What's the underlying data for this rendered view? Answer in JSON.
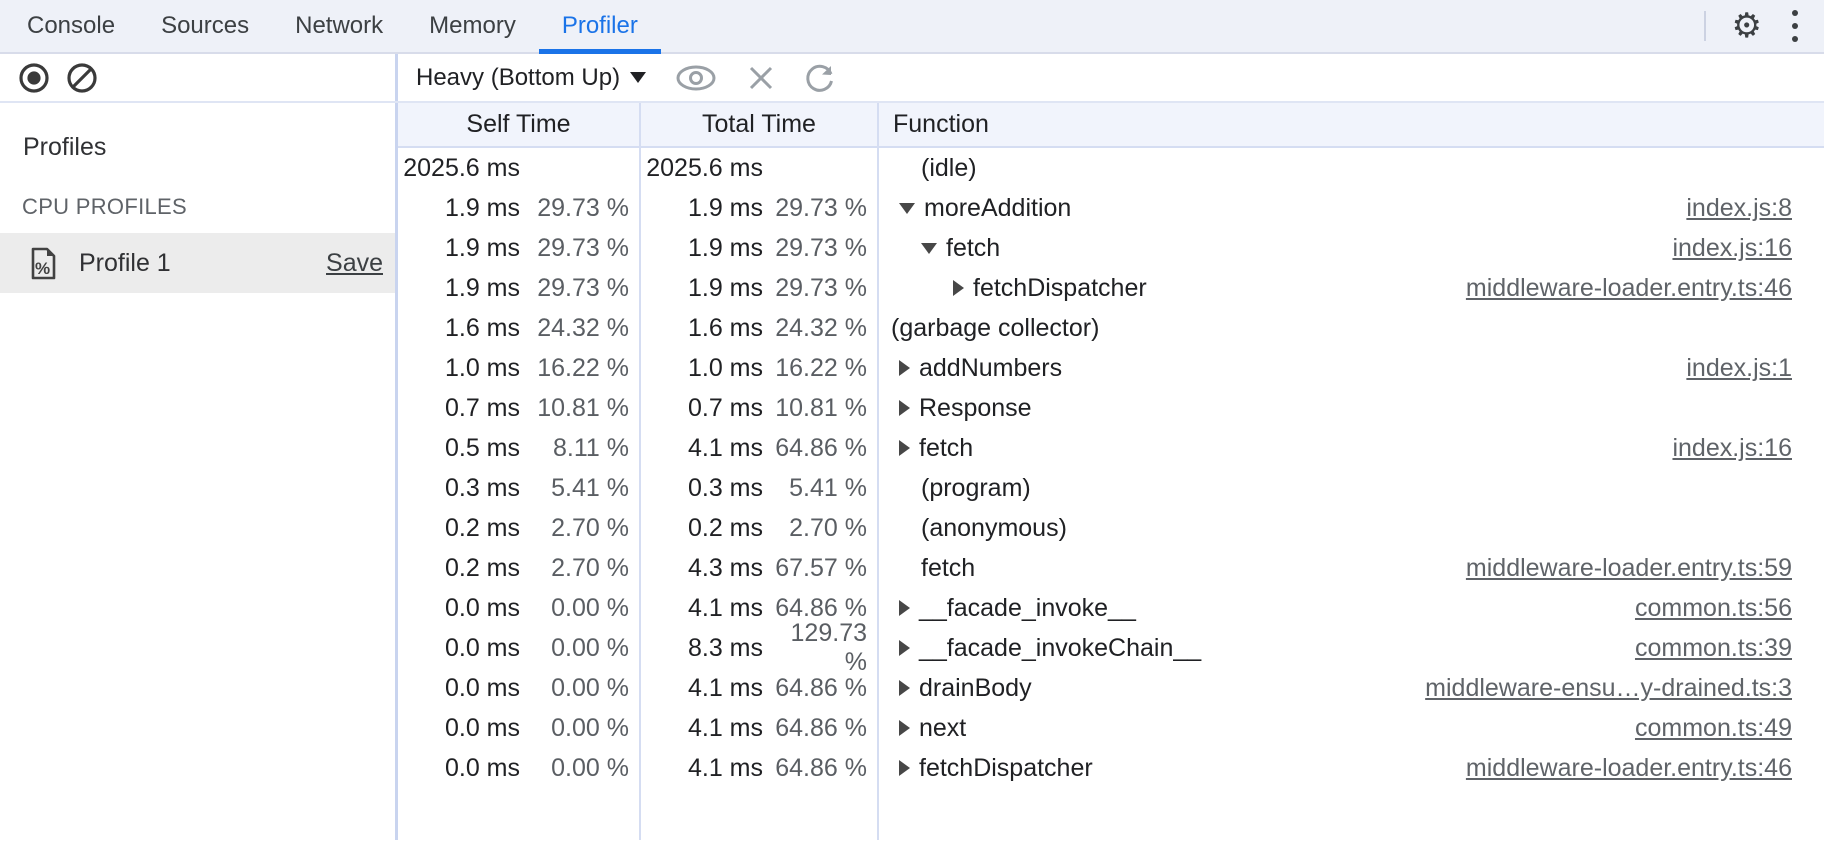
{
  "tabs": {
    "items": [
      {
        "label": "Console",
        "active": false
      },
      {
        "label": "Sources",
        "active": false
      },
      {
        "label": "Network",
        "active": false
      },
      {
        "label": "Memory",
        "active": false
      },
      {
        "label": "Profiler",
        "active": true
      }
    ]
  },
  "colors": {
    "accent": "#1a73e8",
    "grid_line": "#c9d4ef",
    "header_bg": "#f1f4fc",
    "secondary_text": "#5f6368"
  },
  "toolbar": {
    "view_mode": "Heavy (Bottom Up)"
  },
  "sidebar": {
    "profiles_label": "Profiles",
    "section_label": "CPU PROFILES",
    "profiles": [
      {
        "name": "Profile 1",
        "action": "Save"
      }
    ]
  },
  "table": {
    "columns": [
      "Self Time",
      "Total Time",
      "Function"
    ],
    "rows": [
      {
        "self_ms": "2025.6 ms",
        "self_pct": "",
        "total_ms": "2025.6 ms",
        "total_pct": "",
        "fn": "(idle)",
        "arrow": "none",
        "indent": 42,
        "link": ""
      },
      {
        "self_ms": "1.9 ms",
        "self_pct": "29.73 %",
        "total_ms": "1.9 ms",
        "total_pct": "29.73 %",
        "fn": "moreAddition",
        "arrow": "down",
        "indent": 20,
        "link": "index.js:8"
      },
      {
        "self_ms": "1.9 ms",
        "self_pct": "29.73 %",
        "total_ms": "1.9 ms",
        "total_pct": "29.73 %",
        "fn": "fetch",
        "arrow": "down",
        "indent": 42,
        "link": "index.js:16"
      },
      {
        "self_ms": "1.9 ms",
        "self_pct": "29.73 %",
        "total_ms": "1.9 ms",
        "total_pct": "29.73 %",
        "fn": "fetchDispatcher",
        "arrow": "right",
        "indent": 74,
        "link": "middleware-loader.entry.ts:46"
      },
      {
        "self_ms": "1.6 ms",
        "self_pct": "24.32 %",
        "total_ms": "1.6 ms",
        "total_pct": "24.32 %",
        "fn": "(garbage collector)",
        "arrow": "none",
        "indent": 12,
        "link": ""
      },
      {
        "self_ms": "1.0 ms",
        "self_pct": "16.22 %",
        "total_ms": "1.0 ms",
        "total_pct": "16.22 %",
        "fn": "addNumbers",
        "arrow": "right",
        "indent": 20,
        "link": "index.js:1"
      },
      {
        "self_ms": "0.7 ms",
        "self_pct": "10.81 %",
        "total_ms": "0.7 ms",
        "total_pct": "10.81 %",
        "fn": "Response",
        "arrow": "right",
        "indent": 20,
        "link": ""
      },
      {
        "self_ms": "0.5 ms",
        "self_pct": "8.11 %",
        "total_ms": "4.1 ms",
        "total_pct": "64.86 %",
        "fn": "fetch",
        "arrow": "right",
        "indent": 20,
        "link": "index.js:16"
      },
      {
        "self_ms": "0.3 ms",
        "self_pct": "5.41 %",
        "total_ms": "0.3 ms",
        "total_pct": "5.41 %",
        "fn": "(program)",
        "arrow": "none",
        "indent": 42,
        "link": ""
      },
      {
        "self_ms": "0.2 ms",
        "self_pct": "2.70 %",
        "total_ms": "0.2 ms",
        "total_pct": "2.70 %",
        "fn": "(anonymous)",
        "arrow": "none",
        "indent": 42,
        "link": ""
      },
      {
        "self_ms": "0.2 ms",
        "self_pct": "2.70 %",
        "total_ms": "4.3 ms",
        "total_pct": "67.57 %",
        "fn": "fetch",
        "arrow": "none",
        "indent": 42,
        "link": "middleware-loader.entry.ts:59"
      },
      {
        "self_ms": "0.0 ms",
        "self_pct": "0.00 %",
        "total_ms": "4.1 ms",
        "total_pct": "64.86 %",
        "fn": "__facade_invoke__",
        "arrow": "right",
        "indent": 20,
        "link": "common.ts:56"
      },
      {
        "self_ms": "0.0 ms",
        "self_pct": "0.00 %",
        "total_ms": "8.3 ms",
        "total_pct": "129.73 %",
        "fn": "__facade_invokeChain__",
        "arrow": "right",
        "indent": 20,
        "link": "common.ts:39"
      },
      {
        "self_ms": "0.0 ms",
        "self_pct": "0.00 %",
        "total_ms": "4.1 ms",
        "total_pct": "64.86 %",
        "fn": "drainBody",
        "arrow": "right",
        "indent": 20,
        "link": "middleware-ensu…y-drained.ts:3"
      },
      {
        "self_ms": "0.0 ms",
        "self_pct": "0.00 %",
        "total_ms": "4.1 ms",
        "total_pct": "64.86 %",
        "fn": "next",
        "arrow": "right",
        "indent": 20,
        "link": "common.ts:49"
      },
      {
        "self_ms": "0.0 ms",
        "self_pct": "0.00 %",
        "total_ms": "4.1 ms",
        "total_pct": "64.86 %",
        "fn": "fetchDispatcher",
        "arrow": "right",
        "indent": 20,
        "link": "middleware-loader.entry.ts:46"
      }
    ]
  }
}
